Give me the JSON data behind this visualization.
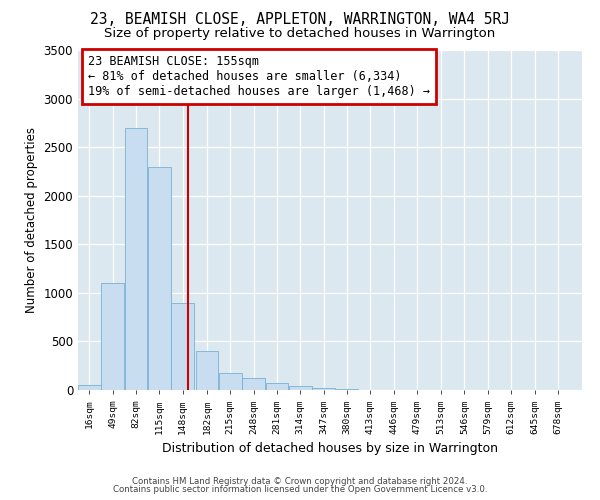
{
  "title": "23, BEAMISH CLOSE, APPLETON, WARRINGTON, WA4 5RJ",
  "subtitle": "Size of property relative to detached houses in Warrington",
  "xlabel": "Distribution of detached houses by size in Warrington",
  "ylabel": "Number of detached properties",
  "footnote1": "Contains HM Land Registry data © Crown copyright and database right 2024.",
  "footnote2": "Contains public sector information licensed under the Open Government Licence v3.0.",
  "annotation_line1": "23 BEAMISH CLOSE: 155sqm",
  "annotation_line2": "← 81% of detached houses are smaller (6,334)",
  "annotation_line3": "19% of semi-detached houses are larger (1,468) →",
  "bar_color": "#c8ddef",
  "bar_edge_color": "#7ab0d4",
  "vline_color": "#cc0000",
  "vline_x": 155,
  "bg_color": "#dce8f0",
  "categories": [
    16,
    49,
    82,
    115,
    148,
    182,
    215,
    248,
    281,
    314,
    347,
    380,
    413,
    446,
    479,
    513,
    546,
    579,
    612,
    645,
    678
  ],
  "bin_width": 33,
  "bar_heights": [
    50,
    1100,
    2700,
    2300,
    900,
    400,
    180,
    120,
    70,
    40,
    20,
    10,
    5,
    2,
    1,
    0,
    0,
    0,
    0,
    0,
    0
  ],
  "ylim": [
    0,
    3500
  ],
  "yticks": [
    0,
    500,
    1000,
    1500,
    2000,
    2500,
    3000,
    3500
  ],
  "grid_color": "#ffffff",
  "title_fontsize": 10.5,
  "subtitle_fontsize": 9.5
}
